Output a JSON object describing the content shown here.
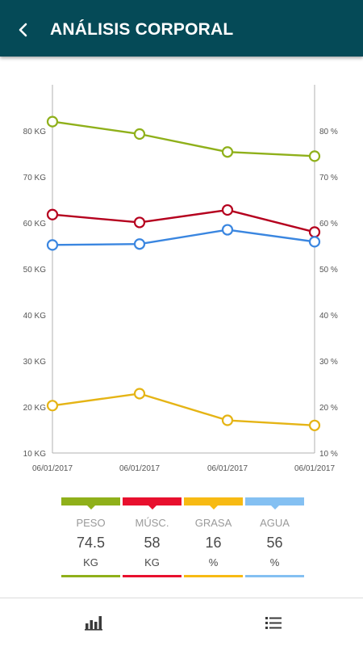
{
  "header": {
    "title": "ANÁLISIS CORPORAL",
    "back_icon": "chevron-left-icon",
    "background": "#054a57"
  },
  "chart_data": {
    "type": "line",
    "x": [
      "06/01/2017",
      "06/01/2017",
      "06/01/2017",
      "06/01/2017"
    ],
    "left_ticks": [
      "10 KG",
      "20 KG",
      "30 KG",
      "40 KG",
      "50 KG",
      "60 KG",
      "70 KG",
      "80 KG"
    ],
    "right_ticks": [
      "10 %",
      "20 %",
      "30 %",
      "40 %",
      "50 %",
      "60 %",
      "70 %",
      "80 %"
    ],
    "ylim": [
      10,
      90
    ],
    "grid": false,
    "series": [
      {
        "name": "PESO",
        "axis": "left",
        "color": "#8fb01a",
        "values": [
          82.0,
          79.3,
          75.4,
          74.5
        ]
      },
      {
        "name": "MÚSC.",
        "axis": "left",
        "color": "#b5001e",
        "values": [
          61.8,
          60.1,
          62.8,
          58.0
        ]
      },
      {
        "name": "GRASA",
        "axis": "right",
        "color": "#e5b415",
        "values": [
          20.3,
          22.9,
          17.1,
          16.0
        ]
      },
      {
        "name": "AGUA",
        "axis": "right",
        "color": "#3a86e0",
        "values": [
          55.2,
          55.4,
          58.5,
          55.9
        ]
      }
    ]
  },
  "stats": [
    {
      "label": "PESO",
      "value": "74.5",
      "unit": "KG",
      "color": "#8fb01a"
    },
    {
      "label": "MÚSC.",
      "value": "58",
      "unit": "KG",
      "color": "#e8102e"
    },
    {
      "label": "GRASA",
      "value": "16",
      "unit": "%",
      "color": "#f7ba13"
    },
    {
      "label": "AGUA",
      "value": "56",
      "unit": "%",
      "color": "#84c0f2"
    }
  ],
  "bottom_nav": {
    "items": [
      {
        "icon": "bar-chart-icon",
        "color": "#3a3a3a"
      },
      {
        "icon": "list-icon",
        "color": "#3a3a3a"
      }
    ]
  }
}
